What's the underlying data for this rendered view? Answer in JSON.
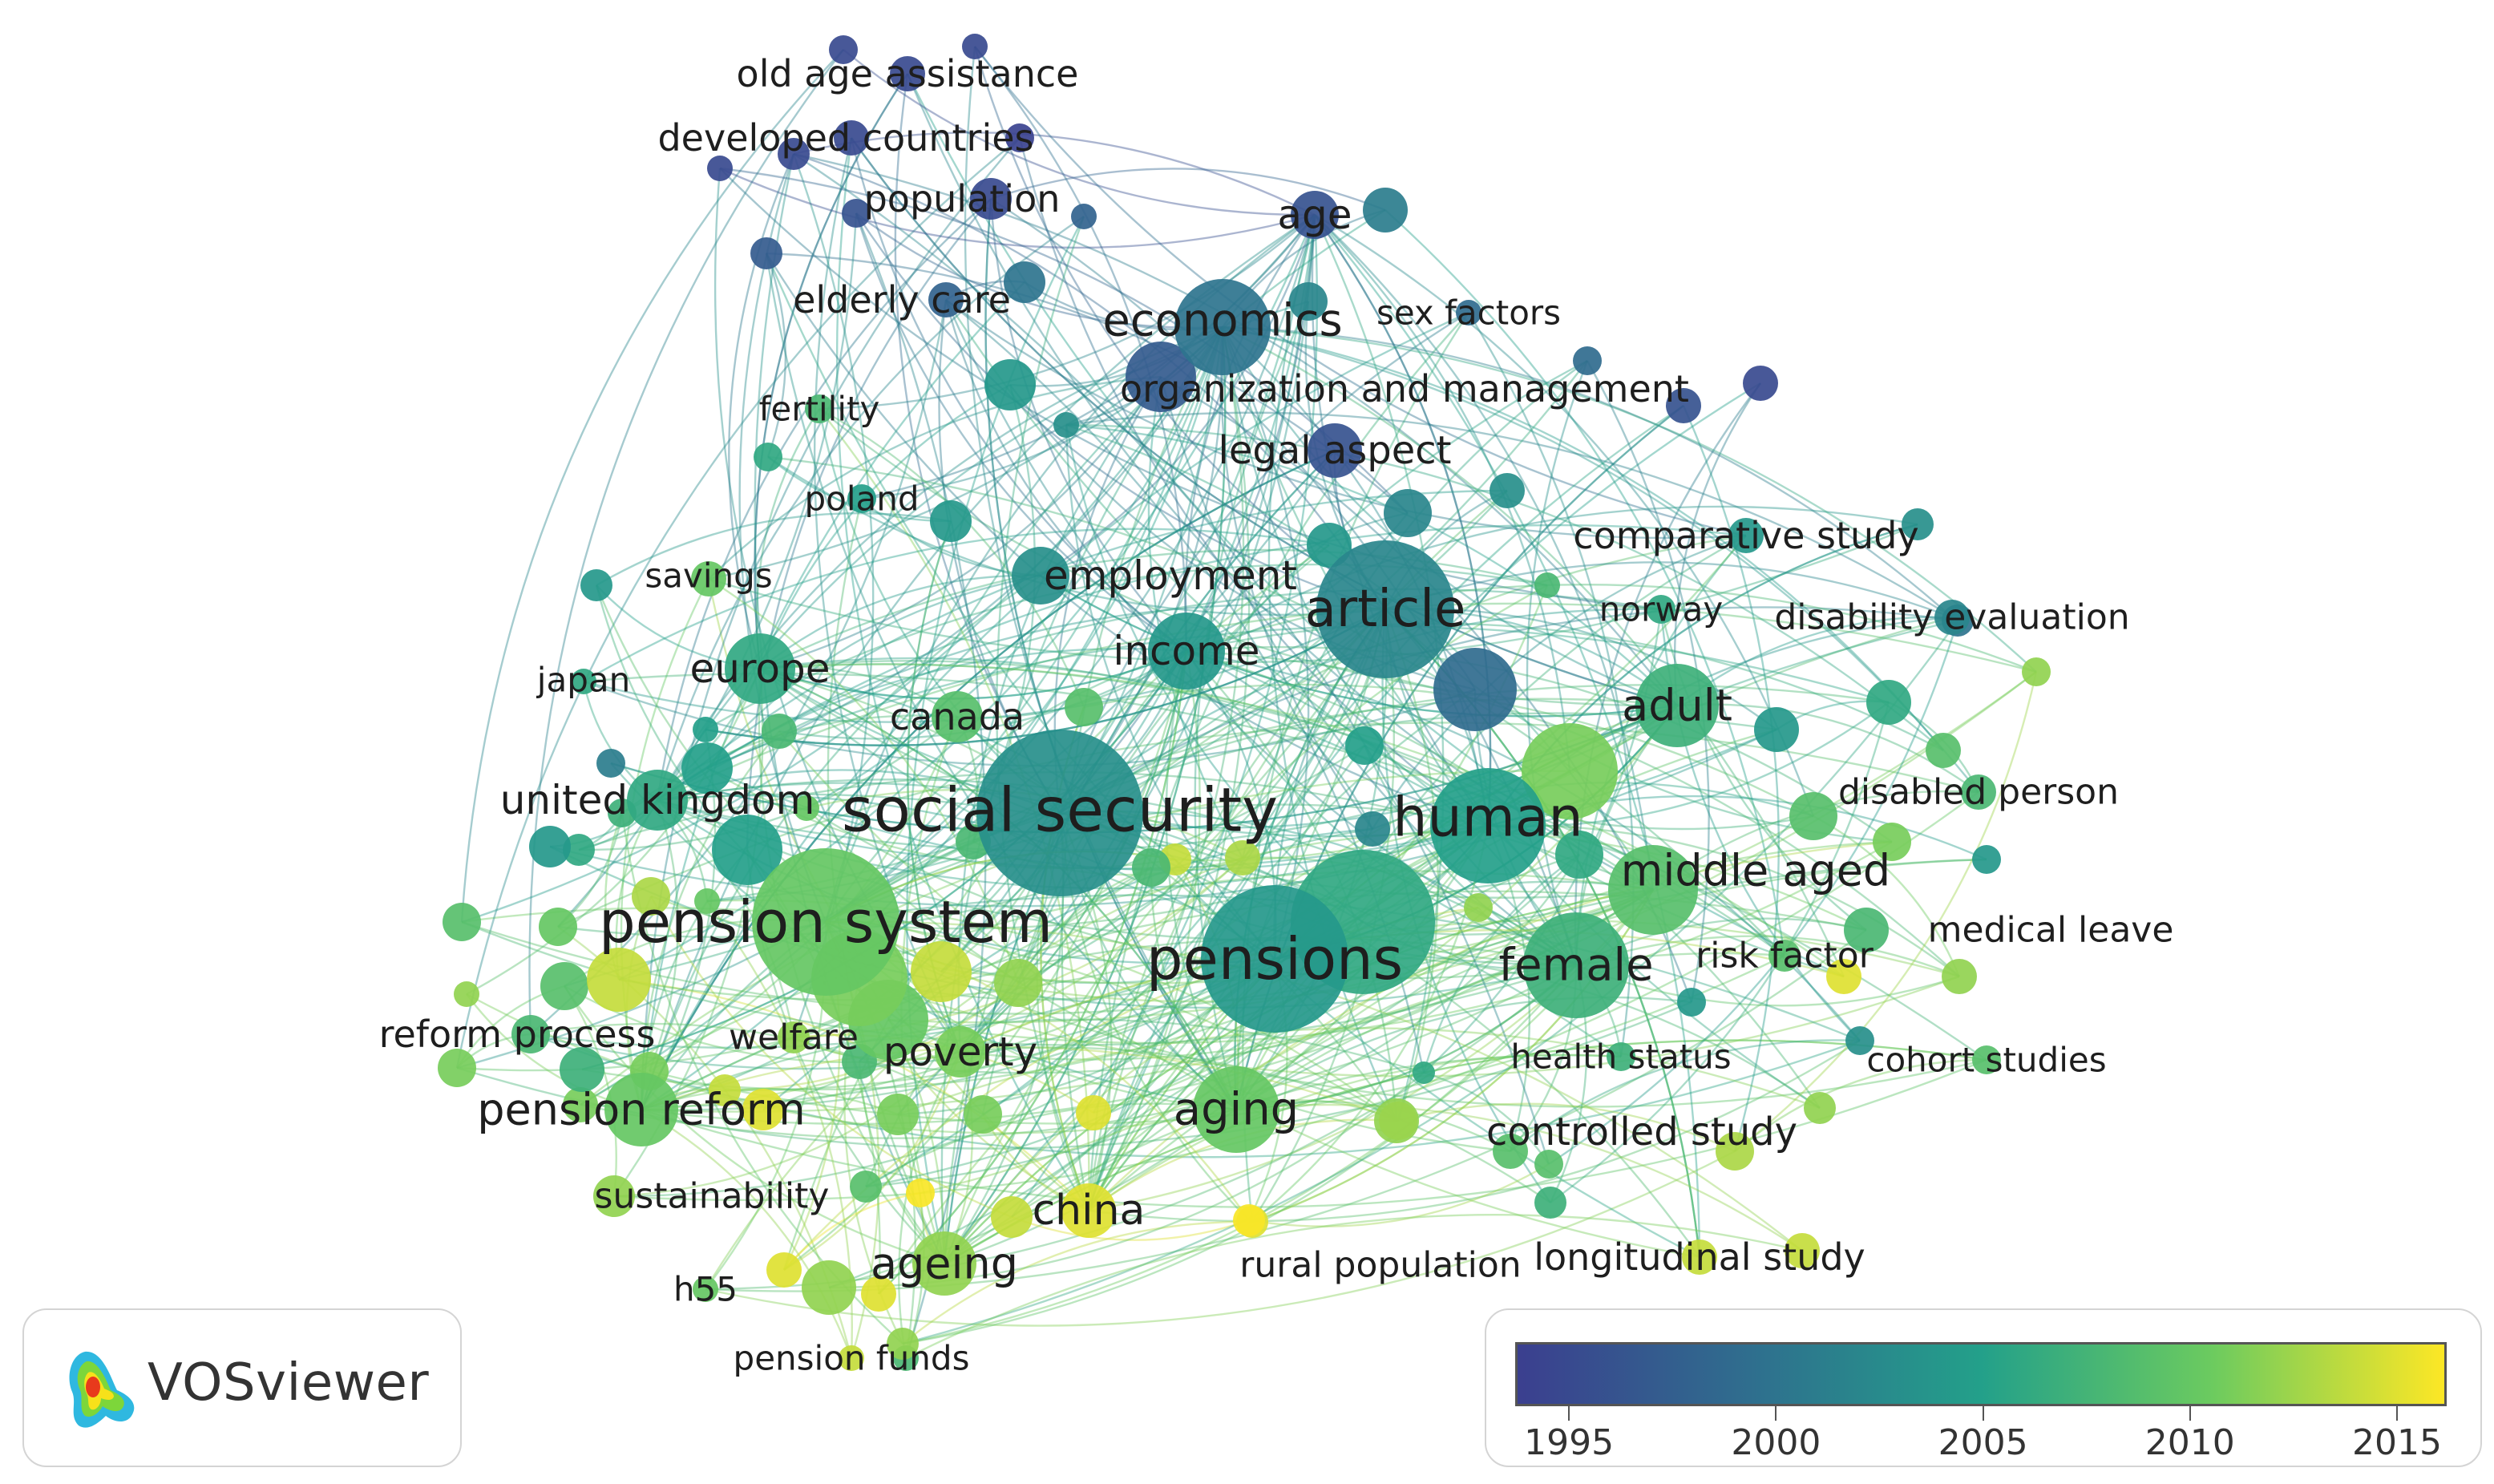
{
  "app": {
    "name": "VOSviewer"
  },
  "legend": {
    "colors": [
      "#3b3f8f",
      "#2f6e8e",
      "#23a08a",
      "#6ccb5f",
      "#fde725"
    ],
    "ticks": [
      {
        "label": "1995",
        "value": 1995
      },
      {
        "label": "2000",
        "value": 2000
      },
      {
        "label": "2005",
        "value": 2005
      },
      {
        "label": "2010",
        "value": 2010
      },
      {
        "label": "2015",
        "value": 2015
      }
    ],
    "range": [
      1993.7,
      2016.2
    ]
  },
  "keywords": [
    {
      "label": "old age assistance",
      "year": 1995,
      "weight": 2
    },
    {
      "label": "developed countries",
      "year": 1995,
      "weight": 2
    },
    {
      "label": "population",
      "year": 1995,
      "weight": 2
    },
    {
      "label": "age",
      "year": 1996,
      "weight": 4
    },
    {
      "label": "elderly care",
      "year": 1998,
      "weight": 2
    },
    {
      "label": "economics",
      "year": 2000,
      "weight": 4
    },
    {
      "label": "sex factors",
      "year": 1999,
      "weight": 1
    },
    {
      "label": "organization and management",
      "year": 1997,
      "weight": 2
    },
    {
      "label": "legal aspect",
      "year": 1996,
      "weight": 3
    },
    {
      "label": "fertility",
      "year": 2008,
      "weight": 1
    },
    {
      "label": "poland",
      "year": 2005,
      "weight": 1
    },
    {
      "label": "comparative study",
      "year": 2004,
      "weight": 2
    },
    {
      "label": "employment",
      "year": 2003,
      "weight": 3
    },
    {
      "label": "article",
      "year": 2002,
      "weight": 8
    },
    {
      "label": "savings",
      "year": 2010,
      "weight": 1
    },
    {
      "label": "norway",
      "year": 2006,
      "weight": 1
    },
    {
      "label": "disability evaluation",
      "year": 2002,
      "weight": 2
    },
    {
      "label": "income",
      "year": 2004,
      "weight": 4
    },
    {
      "label": "japan",
      "year": 2006,
      "weight": 1
    },
    {
      "label": "europe",
      "year": 2006,
      "weight": 4
    },
    {
      "label": "canada",
      "year": 2009,
      "weight": 2
    },
    {
      "label": "adult",
      "year": 2007,
      "weight": 5
    },
    {
      "label": "disabled person",
      "year": 2008,
      "weight": 2
    },
    {
      "label": "united kingdom",
      "year": 2006,
      "weight": 4
    },
    {
      "label": "social security",
      "year": 2003,
      "weight": 12
    },
    {
      "label": "human",
      "year": 2005,
      "weight": 8
    },
    {
      "label": "middle aged",
      "year": 2009,
      "weight": 5
    },
    {
      "label": "pension system",
      "year": 2010,
      "weight": 10
    },
    {
      "label": "pensions",
      "year": 2004,
      "weight": 11
    },
    {
      "label": "medical leave",
      "year": 2012,
      "weight": 2
    },
    {
      "label": "female",
      "year": 2007,
      "weight": 6
    },
    {
      "label": "risk factor",
      "year": 2009,
      "weight": 2
    },
    {
      "label": "reform process",
      "year": 2008,
      "weight": 2
    },
    {
      "label": "welfare",
      "year": 2012,
      "weight": 2
    },
    {
      "label": "poverty",
      "year": 2011,
      "weight": 4
    },
    {
      "label": "health status",
      "year": 2007,
      "weight": 2
    },
    {
      "label": "cohort studies",
      "year": 2009,
      "weight": 1
    },
    {
      "label": "pension reform",
      "year": 2010,
      "weight": 5
    },
    {
      "label": "aging",
      "year": 2010,
      "weight": 5
    },
    {
      "label": "controlled study",
      "year": 2012,
      "weight": 3
    },
    {
      "label": "sustainability",
      "year": 2012,
      "weight": 2
    },
    {
      "label": "china",
      "year": 2015,
      "weight": 4
    },
    {
      "label": "longitudinal study",
      "year": 2014,
      "weight": 2
    },
    {
      "label": "rural population",
      "year": 2015,
      "weight": 2
    },
    {
      "label": "ageing",
      "year": 2012,
      "weight": 4
    },
    {
      "label": "h55",
      "year": 2010,
      "weight": 1
    },
    {
      "label": "pension funds",
      "year": 2014,
      "weight": 1
    }
  ]
}
